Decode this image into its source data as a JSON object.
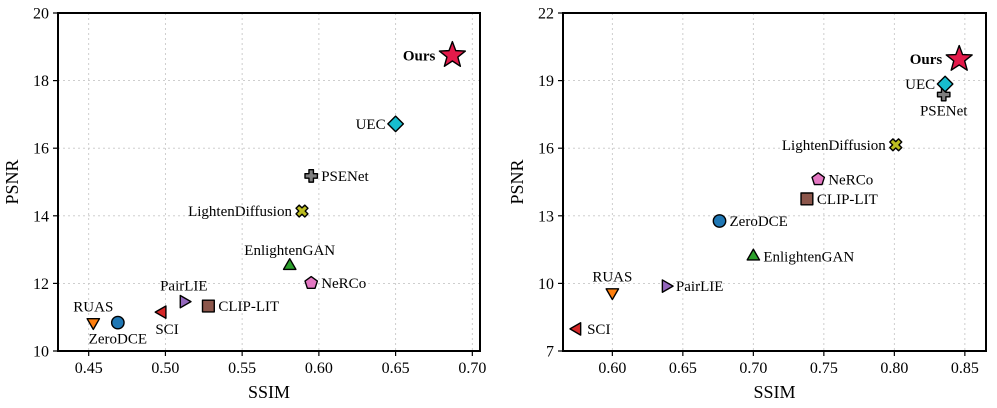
{
  "chart_data": [
    {
      "type": "scatter",
      "title": "",
      "xlabel": "SSIM",
      "ylabel": "PSNR",
      "xlim": [
        0.43,
        0.705
      ],
      "ylim": [
        10,
        20
      ],
      "xticks": [
        "0.45",
        "0.50",
        "0.55",
        "0.60",
        "0.65",
        "0.70"
      ],
      "yticks": [
        "10",
        "12",
        "14",
        "16",
        "18",
        "20"
      ],
      "xtick_values": [
        0.45,
        0.5,
        0.55,
        0.6,
        0.65,
        0.7
      ],
      "ytick_values": [
        10,
        12,
        14,
        16,
        18,
        20
      ],
      "grid": true,
      "points": [
        {
          "name": "RUAS",
          "x": 0.453,
          "y": 10.85,
          "marker": "triangle-down",
          "color": "#ff7f0e",
          "label_pos": "top"
        },
        {
          "name": "ZeroDCE",
          "x": 0.469,
          "y": 10.84,
          "marker": "circle",
          "color": "#1f77b4",
          "label_pos": "bottom"
        },
        {
          "name": "SCI",
          "x": 0.498,
          "y": 11.15,
          "marker": "triangle-left",
          "color": "#d62728",
          "label_pos": "bottom-right"
        },
        {
          "name": "PairLIE",
          "x": 0.512,
          "y": 11.46,
          "marker": "triangle-right",
          "color": "#9467bd",
          "label_pos": "top"
        },
        {
          "name": "CLIP-LIT",
          "x": 0.528,
          "y": 11.33,
          "marker": "square",
          "color": "#8c564b",
          "label_pos": "right"
        },
        {
          "name": "EnlightenGAN",
          "x": 0.581,
          "y": 12.52,
          "marker": "triangle-up",
          "color": "#2ca02c",
          "label_pos": "top"
        },
        {
          "name": "NeRCo",
          "x": 0.595,
          "y": 12.01,
          "marker": "pentagon",
          "color": "#e377c2",
          "label_pos": "right"
        },
        {
          "name": "LightenDiffusion",
          "x": 0.589,
          "y": 14.14,
          "marker": "x",
          "color": "#bcbd22",
          "label_pos": "left"
        },
        {
          "name": "PSENet",
          "x": 0.595,
          "y": 15.18,
          "marker": "plus",
          "color": "#7f7f7f",
          "label_pos": "right"
        },
        {
          "name": "UEC",
          "x": 0.65,
          "y": 16.72,
          "marker": "diamond",
          "color": "#17becf",
          "label_pos": "left"
        },
        {
          "name": "Ours",
          "x": 0.687,
          "y": 18.75,
          "marker": "star",
          "color": "#e31a4a",
          "label_pos": "left",
          "bold": true
        }
      ]
    },
    {
      "type": "scatter",
      "title": "",
      "xlabel": "SSIM",
      "ylabel": "PSNR",
      "xlim": [
        0.565,
        0.865
      ],
      "ylim": [
        7,
        22
      ],
      "xticks": [
        "0.60",
        "0.65",
        "0.70",
        "0.75",
        "0.80",
        "0.85"
      ],
      "yticks": [
        "7",
        "10",
        "13",
        "16",
        "19",
        "22"
      ],
      "xtick_values": [
        0.6,
        0.65,
        0.7,
        0.75,
        0.8,
        0.85
      ],
      "ytick_values": [
        7,
        10,
        13,
        16,
        19,
        22
      ],
      "grid": true,
      "points": [
        {
          "name": "SCI",
          "x": 0.575,
          "y": 7.98,
          "marker": "triangle-left",
          "color": "#d62728",
          "label_pos": "right"
        },
        {
          "name": "RUAS",
          "x": 0.6,
          "y": 9.6,
          "marker": "triangle-down",
          "color": "#ff7f0e",
          "label_pos": "top"
        },
        {
          "name": "PairLIE",
          "x": 0.638,
          "y": 9.88,
          "marker": "triangle-right",
          "color": "#9467bd",
          "label_pos": "right"
        },
        {
          "name": "ZeroDCE",
          "x": 0.676,
          "y": 12.77,
          "marker": "circle",
          "color": "#1f77b4",
          "label_pos": "right"
        },
        {
          "name": "EnlightenGAN",
          "x": 0.7,
          "y": 11.2,
          "marker": "triangle-up",
          "color": "#2ca02c",
          "label_pos": "right"
        },
        {
          "name": "CLIP-LIT",
          "x": 0.738,
          "y": 13.75,
          "marker": "square",
          "color": "#8c564b",
          "label_pos": "right"
        },
        {
          "name": "NeRCo",
          "x": 0.746,
          "y": 14.62,
          "marker": "pentagon",
          "color": "#e377c2",
          "label_pos": "right"
        },
        {
          "name": "LightenDiffusion",
          "x": 0.801,
          "y": 16.15,
          "marker": "x",
          "color": "#bcbd22",
          "label_pos": "left"
        },
        {
          "name": "PSENet",
          "x": 0.835,
          "y": 18.38,
          "marker": "plus",
          "color": "#7f7f7f",
          "label_pos": "bottom"
        },
        {
          "name": "UEC",
          "x": 0.836,
          "y": 18.85,
          "marker": "diamond",
          "color": "#17becf",
          "label_pos": "left"
        },
        {
          "name": "Ours",
          "x": 0.846,
          "y": 19.95,
          "marker": "star",
          "color": "#e31a4a",
          "label_pos": "left",
          "bold": true
        }
      ]
    }
  ]
}
